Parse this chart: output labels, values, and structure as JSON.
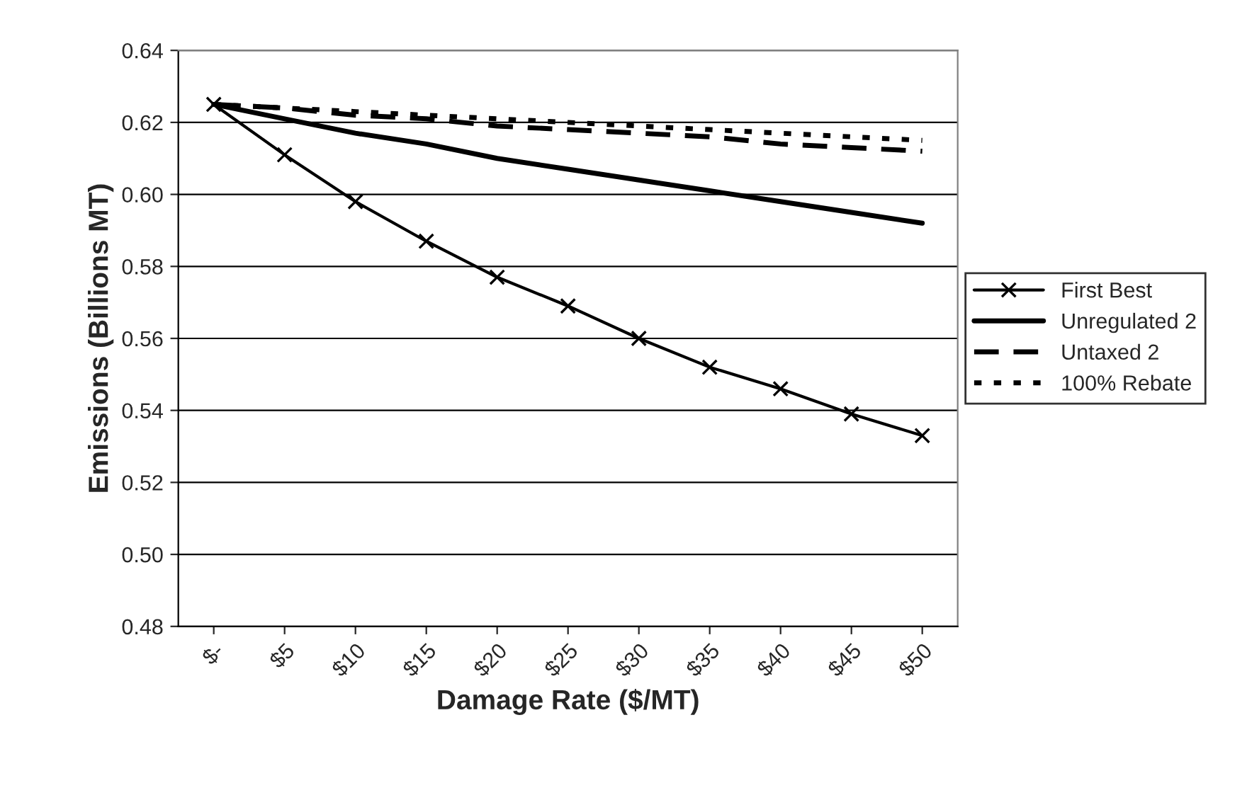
{
  "chart_data": {
    "type": "line",
    "xlabel": "Damage Rate ($/MT)",
    "ylabel": "Emissions (Billions MT)",
    "categories": [
      "$-",
      "$5",
      "$10",
      "$15",
      "$20",
      "$25",
      "$30",
      "$35",
      "$40",
      "$45",
      "$50"
    ],
    "series": [
      {
        "name": "First Best",
        "color": "#000000",
        "marker": "cross",
        "line_style": "solid",
        "values": [
          0.625,
          0.611,
          0.598,
          0.587,
          0.577,
          0.569,
          0.56,
          0.552,
          0.546,
          0.539,
          0.533
        ]
      },
      {
        "name": "Unregulated 2",
        "color": "#000000",
        "line_style": "solid",
        "values": [
          0.625,
          0.621,
          0.617,
          0.614,
          0.61,
          0.607,
          0.604,
          0.601,
          0.598,
          0.595,
          0.592
        ]
      },
      {
        "name": "Untaxed 2",
        "color": "#000000",
        "line_style": "dashed",
        "values": [
          0.625,
          0.624,
          0.622,
          0.621,
          0.619,
          0.618,
          0.617,
          0.616,
          0.614,
          0.613,
          0.612
        ]
      },
      {
        "name": "100% Rebate",
        "color": "#000000",
        "line_style": "dotted",
        "values": [
          0.625,
          0.624,
          0.623,
          0.622,
          0.621,
          0.62,
          0.619,
          0.618,
          0.617,
          0.616,
          0.615
        ]
      }
    ],
    "ylim": [
      0.48,
      0.64
    ],
    "yticks": [
      {
        "value": 0.48,
        "label": "0.48"
      },
      {
        "value": 0.5,
        "label": "0.50"
      },
      {
        "value": 0.52,
        "label": "0.52"
      },
      {
        "value": 0.54,
        "label": "0.54"
      },
      {
        "value": 0.56,
        "label": "0.56"
      },
      {
        "value": 0.58,
        "label": "0.58"
      },
      {
        "value": 0.6,
        "label": "0.60"
      },
      {
        "value": 0.62,
        "label": "0.62"
      },
      {
        "value": 0.64,
        "label": "0.64"
      }
    ],
    "grid": "y",
    "legend": "right"
  }
}
